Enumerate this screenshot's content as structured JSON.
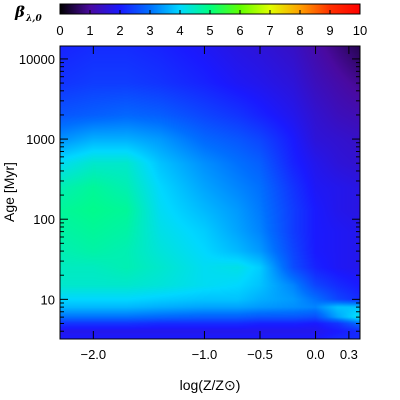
{
  "chart_data": {
    "type": "heatmap",
    "title": "",
    "xlabel": "log(Z/Z⊙)",
    "ylabel": "Age [Myr]",
    "y_scale": "log",
    "xlim": [
      -2.3,
      0.4
    ],
    "ylim": [
      3.2,
      14500
    ],
    "x_ticks": [
      -2.0,
      -1.0,
      -0.5,
      0.0,
      0.3
    ],
    "x_tick_labels": [
      "−2.0",
      "−1.0",
      "−0.5",
      "0.0",
      "0.3"
    ],
    "y_ticks": [
      10,
      100,
      1000,
      10000
    ],
    "y_tick_labels": [
      "10",
      "100",
      "1000",
      "10000"
    ],
    "colorbar": {
      "label": "β",
      "label_sub": "λ,0",
      "range": [
        0,
        10
      ],
      "ticks": [
        0,
        1,
        2,
        3,
        4,
        5,
        6,
        7,
        8,
        9,
        10
      ],
      "tick_labels": [
        "0",
        "1",
        "2",
        "3",
        "4",
        "5",
        "6",
        "7",
        "8",
        "9",
        "10"
      ],
      "position": "top"
    },
    "grid": false,
    "colormap": [
      "#000000",
      "#4a0aa0",
      "#1a1aff",
      "#0070ff",
      "#00d8ff",
      "#00ff80",
      "#60ff00",
      "#e0ff00",
      "#ffa000",
      "#ff3000",
      "#ff0000"
    ],
    "x_grid": [
      -2.3,
      -2.0,
      -1.7,
      -1.4,
      -1.0,
      -0.7,
      -0.5,
      -0.2,
      0.0,
      0.2,
      0.4
    ],
    "y_grid": [
      3.2,
      4,
      5,
      6,
      8,
      10,
      15,
      25,
      40,
      70,
      130,
      250,
      500,
      1000,
      2000,
      5000,
      14500
    ],
    "z": [
      [
        2.0,
        2.0,
        2.0,
        2.0,
        2.0,
        2.0,
        2.0,
        2.0,
        2.0,
        2.2,
        2.2
      ],
      [
        1.8,
        1.8,
        1.8,
        1.8,
        1.8,
        1.8,
        1.8,
        1.8,
        1.8,
        2.0,
        2.2
      ],
      [
        2.3,
        2.3,
        2.3,
        2.2,
        2.2,
        2.2,
        2.1,
        2.1,
        2.0,
        2.3,
        3.0
      ],
      [
        3.0,
        3.0,
        3.0,
        2.9,
        2.8,
        2.8,
        2.7,
        2.7,
        2.6,
        3.5,
        4.2
      ],
      [
        3.7,
        3.7,
        3.7,
        3.6,
        3.5,
        3.5,
        3.4,
        3.3,
        3.2,
        3.8,
        3.8
      ],
      [
        4.0,
        4.0,
        4.0,
        3.9,
        3.8,
        3.8,
        3.6,
        3.4,
        3.0,
        2.5,
        2.2
      ],
      [
        4.4,
        4.4,
        4.4,
        4.3,
        4.1,
        4.0,
        3.8,
        3.2,
        2.5,
        2.2,
        2.0
      ],
      [
        4.5,
        4.5,
        4.6,
        4.4,
        4.1,
        4.2,
        3.9,
        2.6,
        2.1,
        1.9,
        1.8
      ],
      [
        4.6,
        4.7,
        4.6,
        4.3,
        4.0,
        3.7,
        3.4,
        2.5,
        2.0,
        1.9,
        1.8
      ],
      [
        4.7,
        4.8,
        4.7,
        4.2,
        3.9,
        3.5,
        3.2,
        2.4,
        2.0,
        1.9,
        1.8
      ],
      [
        4.8,
        4.9,
        4.8,
        4.1,
        3.7,
        3.4,
        3.1,
        2.4,
        2.0,
        1.8,
        1.7
      ],
      [
        4.6,
        4.8,
        4.6,
        4.0,
        3.5,
        3.2,
        3.0,
        2.3,
        1.9,
        1.8,
        1.7
      ],
      [
        4.1,
        4.4,
        4.4,
        3.8,
        3.3,
        3.0,
        2.8,
        2.1,
        1.8,
        1.6,
        1.5
      ],
      [
        3.3,
        3.6,
        3.6,
        3.4,
        2.9,
        2.7,
        2.5,
        2.0,
        1.6,
        1.5,
        1.4
      ],
      [
        2.7,
        2.8,
        2.9,
        2.8,
        2.5,
        2.3,
        2.1,
        1.8,
        1.5,
        1.3,
        1.2
      ],
      [
        2.3,
        2.4,
        2.4,
        2.3,
        2.1,
        1.9,
        1.8,
        1.6,
        1.3,
        1.1,
        0.9
      ],
      [
        2.1,
        2.2,
        2.2,
        2.1,
        1.9,
        1.7,
        1.6,
        1.4,
        1.1,
        0.8,
        0.5
      ]
    ]
  }
}
